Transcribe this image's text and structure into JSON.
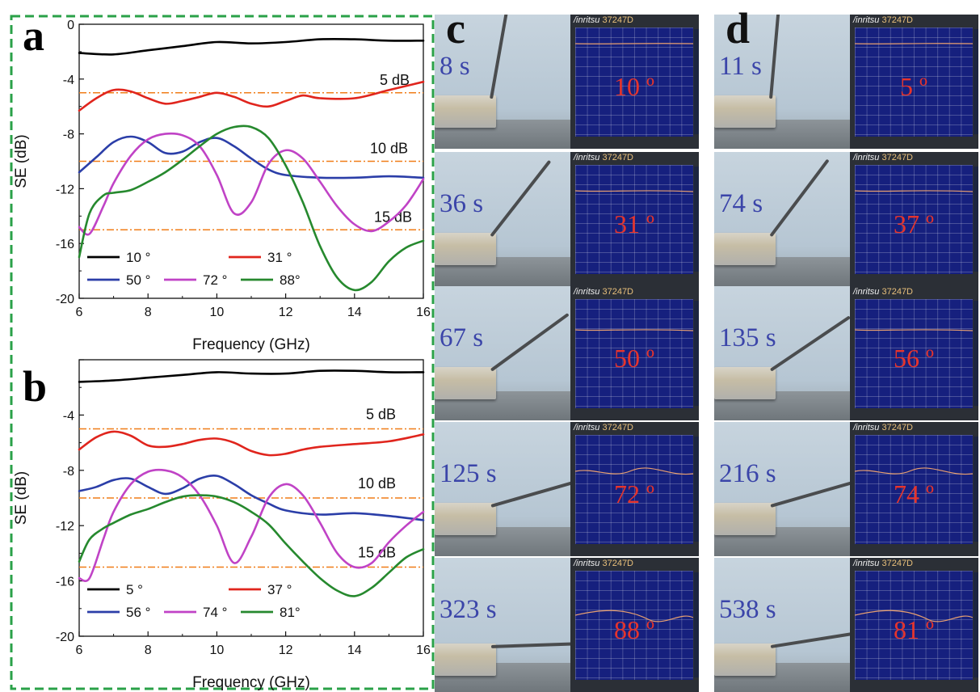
{
  "chart_data": [
    {
      "panel": "a",
      "type": "line",
      "xlabel": "Frequency (GHz)",
      "ylabel": "SE (dB)",
      "xlim": [
        6,
        16
      ],
      "ylim": [
        -20,
        0
      ],
      "xticks": [
        "6",
        "8",
        "10",
        "12",
        "14",
        "16"
      ],
      "yticks": [
        "0",
        "-4",
        "-8",
        "-12",
        "-16",
        "-20"
      ],
      "reference_lines": [
        {
          "y": -5,
          "label": "5 dB"
        },
        {
          "y": -10,
          "label": "10 dB"
        },
        {
          "y": -15,
          "label": "15 dB"
        }
      ],
      "series": [
        {
          "name": "10 °",
          "color": "#000000",
          "x": [
            6,
            7,
            8,
            9,
            10,
            11,
            12,
            13,
            14,
            15,
            16
          ],
          "y": [
            -2.1,
            -2.2,
            -1.9,
            -1.6,
            -1.3,
            -1.4,
            -1.3,
            -1.1,
            -1.1,
            -1.2,
            -1.2
          ]
        },
        {
          "name": "31 °",
          "color": "#e0251d",
          "x": [
            6,
            6.5,
            7,
            7.5,
            8,
            8.5,
            9,
            9.5,
            10,
            10.5,
            11,
            11.5,
            12,
            12.5,
            13,
            14,
            15,
            16
          ],
          "y": [
            -6.3,
            -5.4,
            -4.8,
            -4.9,
            -5.4,
            -5.8,
            -5.6,
            -5.3,
            -5.0,
            -5.3,
            -5.8,
            -6.0,
            -5.6,
            -5.2,
            -5.4,
            -5.4,
            -4.8,
            -4.2
          ]
        },
        {
          "name": "50 °",
          "color": "#2b3ea8",
          "x": [
            6,
            6.5,
            7,
            7.5,
            8,
            8.5,
            9,
            9.5,
            10,
            10.5,
            11,
            11.5,
            12,
            13,
            14,
            15,
            16
          ],
          "y": [
            -10.8,
            -9.7,
            -8.6,
            -8.2,
            -8.6,
            -9.4,
            -9.3,
            -8.6,
            -8.3,
            -8.9,
            -9.8,
            -10.6,
            -11.0,
            -11.2,
            -11.2,
            -11.1,
            -11.2
          ]
        },
        {
          "name": "72 °",
          "color": "#c043c6",
          "x": [
            6,
            6.3,
            6.7,
            7,
            7.5,
            8,
            8.5,
            9,
            9.5,
            10,
            10.5,
            11,
            11.5,
            12,
            12.5,
            13,
            13.5,
            14,
            14.5,
            15,
            15.5,
            16
          ],
          "y": [
            -14.8,
            -15.3,
            -13.3,
            -11.6,
            -9.6,
            -8.4,
            -8.0,
            -8.1,
            -8.9,
            -11.0,
            -13.8,
            -13.0,
            -10.2,
            -9.2,
            -9.8,
            -11.5,
            -13.3,
            -14.6,
            -15.1,
            -14.4,
            -13.2,
            -11.3
          ]
        },
        {
          "name": "88°",
          "color": "#26892e",
          "x": [
            6,
            6.3,
            6.7,
            7,
            7.5,
            8,
            8.5,
            9,
            9.5,
            10,
            10.5,
            11,
            11.5,
            12,
            12.5,
            13,
            13.5,
            14,
            14.5,
            15,
            15.5,
            16
          ],
          "y": [
            -17.0,
            -13.8,
            -12.5,
            -12.3,
            -12.1,
            -11.5,
            -10.8,
            -9.9,
            -8.9,
            -8.0,
            -7.5,
            -7.5,
            -8.3,
            -10.3,
            -13.0,
            -16.2,
            -18.5,
            -19.4,
            -18.8,
            -17.3,
            -16.3,
            -15.8
          ]
        }
      ]
    },
    {
      "panel": "b",
      "type": "line",
      "xlabel": "Frequency (GHz)",
      "ylabel": "SE (dB)",
      "xlim": [
        6,
        16
      ],
      "ylim": [
        -20,
        0
      ],
      "xticks": [
        "6",
        "8",
        "10",
        "12",
        "14",
        "16"
      ],
      "yticks": [
        "",
        "-4",
        "-8",
        "-12",
        "-16",
        "-20"
      ],
      "reference_lines": [
        {
          "y": -5,
          "label": "5 dB"
        },
        {
          "y": -10,
          "label": "10 dB"
        },
        {
          "y": -15,
          "label": "15 dB"
        }
      ],
      "series": [
        {
          "name": "5 °",
          "color": "#000000",
          "x": [
            6,
            7,
            8,
            9,
            10,
            11,
            12,
            13,
            14,
            15,
            16
          ],
          "y": [
            -1.6,
            -1.5,
            -1.3,
            -1.1,
            -0.9,
            -1.0,
            -1.0,
            -0.8,
            -0.8,
            -0.9,
            -0.9
          ]
        },
        {
          "name": "37 °",
          "color": "#e0251d",
          "x": [
            6,
            6.5,
            7,
            7.5,
            8,
            8.5,
            9,
            9.5,
            10,
            10.5,
            11,
            11.5,
            12,
            12.5,
            13,
            14,
            15,
            16
          ],
          "y": [
            -6.5,
            -5.6,
            -5.2,
            -5.5,
            -6.2,
            -6.3,
            -6.1,
            -5.8,
            -5.7,
            -6.0,
            -6.6,
            -6.9,
            -6.8,
            -6.5,
            -6.3,
            -6.1,
            -5.9,
            -5.4
          ]
        },
        {
          "name": "56 °",
          "color": "#2b3ea8",
          "x": [
            6,
            6.5,
            7,
            7.5,
            8,
            8.5,
            9,
            9.5,
            10,
            10.5,
            11,
            11.5,
            12,
            13,
            14,
            15,
            16
          ],
          "y": [
            -9.5,
            -9.2,
            -8.7,
            -8.6,
            -9.2,
            -9.7,
            -9.3,
            -8.6,
            -8.4,
            -9.0,
            -9.8,
            -10.4,
            -10.9,
            -11.2,
            -11.1,
            -11.3,
            -11.6
          ]
        },
        {
          "name": "74 °",
          "color": "#c043c6",
          "x": [
            6,
            6.3,
            6.7,
            7,
            7.5,
            8,
            8.5,
            9,
            9.5,
            10,
            10.5,
            11,
            11.5,
            12,
            12.5,
            13,
            13.5,
            14,
            14.5,
            15,
            15.5,
            16
          ],
          "y": [
            -15.8,
            -15.8,
            -13.0,
            -11.0,
            -9.0,
            -8.1,
            -8.0,
            -8.5,
            -9.8,
            -12.0,
            -14.7,
            -12.8,
            -10.0,
            -9.0,
            -9.8,
            -11.8,
            -14.0,
            -15.0,
            -14.7,
            -13.2,
            -12.0,
            -11.0
          ]
        },
        {
          "name": "81°",
          "color": "#26892e",
          "x": [
            6,
            6.3,
            6.7,
            7,
            7.5,
            8,
            8.5,
            9,
            9.5,
            10,
            10.5,
            11,
            11.5,
            12,
            12.5,
            13,
            13.5,
            14,
            14.5,
            15,
            15.5,
            16
          ],
          "y": [
            -14.6,
            -13.0,
            -12.2,
            -11.8,
            -11.2,
            -10.8,
            -10.3,
            -9.9,
            -9.8,
            -9.9,
            -10.3,
            -11.0,
            -11.9,
            -13.3,
            -14.6,
            -15.8,
            -16.7,
            -17.1,
            -16.5,
            -15.4,
            -14.3,
            -13.7
          ]
        }
      ]
    }
  ],
  "photo_panels": [
    {
      "letter": "c",
      "rows": [
        {
          "time": "8 s",
          "angle": "10 º",
          "angle_deg": 80
        },
        {
          "time": "36 s",
          "angle": "31 º",
          "angle_deg": 52
        },
        {
          "time": "67 s",
          "angle": "50 º",
          "angle_deg": 36
        },
        {
          "time": "125 s",
          "angle": "72 º",
          "angle_deg": 16
        },
        {
          "time": "323 s",
          "angle": "88 º",
          "angle_deg": 2
        }
      ]
    },
    {
      "letter": "d",
      "rows": [
        {
          "time": "11 s",
          "angle": "5 º",
          "angle_deg": 85
        },
        {
          "time": "74 s",
          "angle": "37 º",
          "angle_deg": 53
        },
        {
          "time": "135 s",
          "angle": "56 º",
          "angle_deg": 34
        },
        {
          "time": "216 s",
          "angle": "74 º",
          "angle_deg": 16
        },
        {
          "time": "538 s",
          "angle": "81 º",
          "angle_deg": 9
        }
      ]
    }
  ],
  "monitor": {
    "brand": "/inritsu",
    "model": "37247D"
  },
  "colors": {
    "frame_dash": "#2aa148",
    "reference_line": "#f07d18",
    "time_text": "#3b45a9",
    "angle_text": "#e6342c"
  }
}
